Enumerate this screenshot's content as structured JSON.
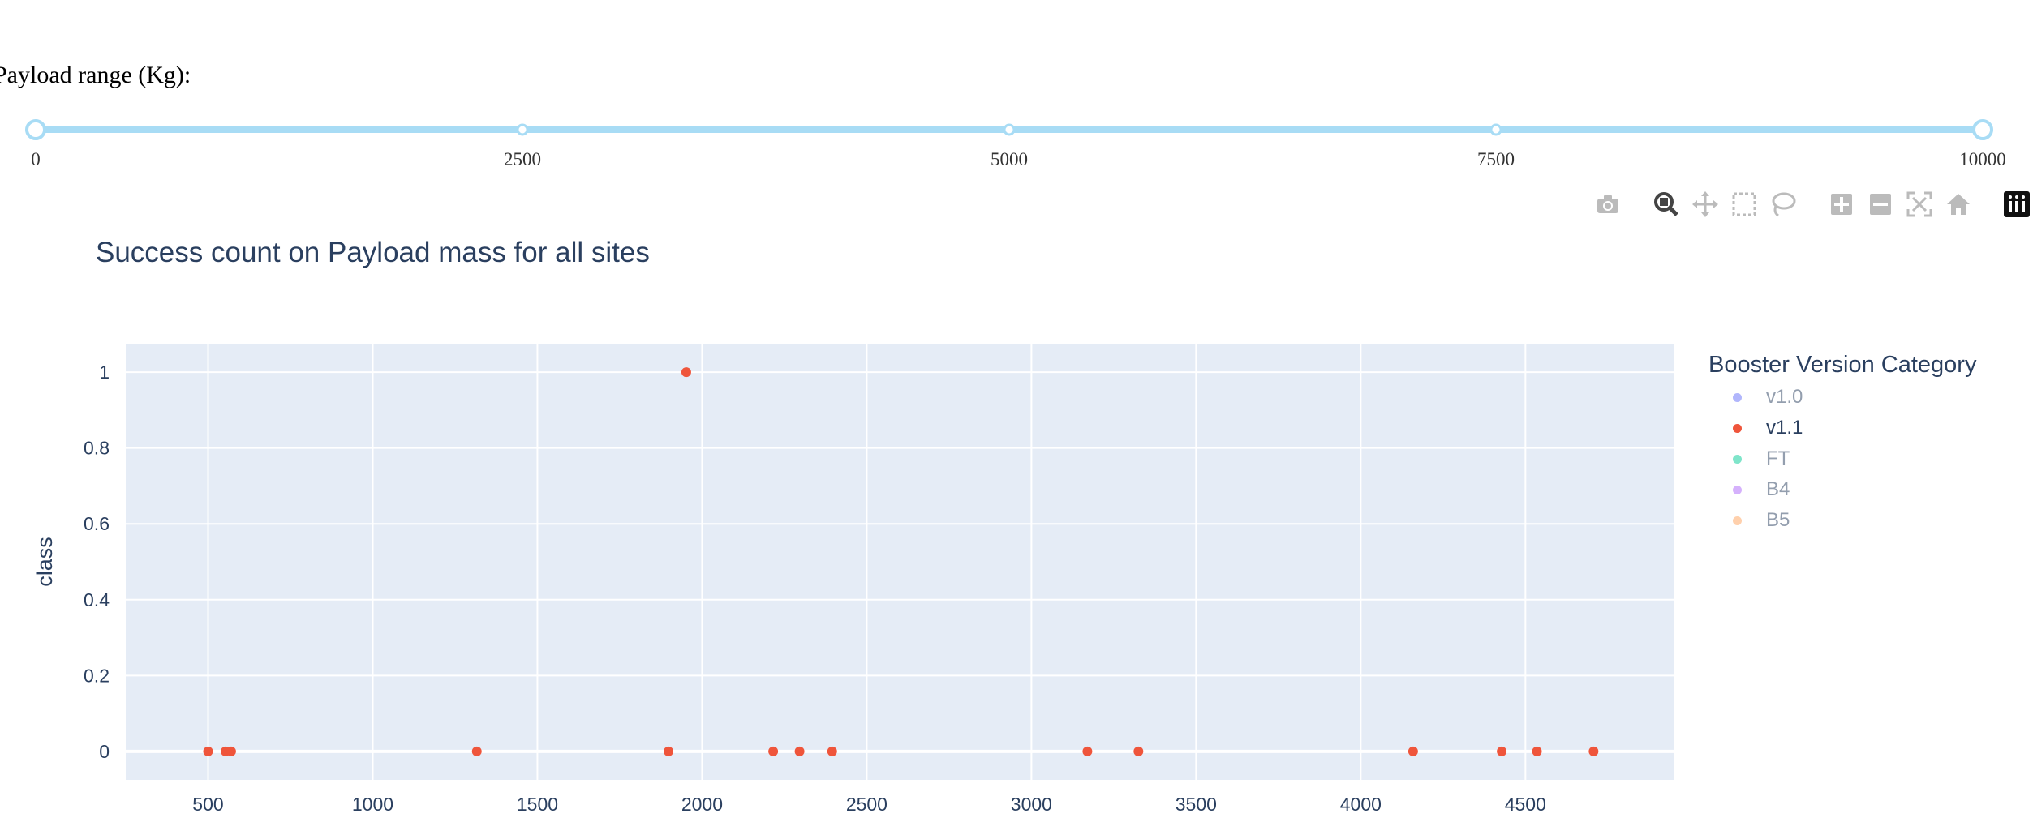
{
  "slider": {
    "label": "Payload range (Kg):",
    "min": 0,
    "max": 10000,
    "value_low": 0,
    "value_high": 10000,
    "marks": [
      "0",
      "2500",
      "5000",
      "7500",
      "10000"
    ],
    "color": "#a8dcf5"
  },
  "modebar": {
    "icons": [
      "camera-icon",
      "zoom-icon",
      "pan-icon",
      "box-select-icon",
      "lasso-icon",
      "zoom-in-icon",
      "zoom-out-icon",
      "autoscale-icon",
      "reset-axes-icon",
      "plotly-logo-icon"
    ]
  },
  "chart_data": {
    "type": "scatter",
    "title": "Success count on Payload mass for all sites",
    "xlabel": "",
    "ylabel": "class",
    "xlim": [
      250,
      4950
    ],
    "ylim": [
      -0.075,
      1.075
    ],
    "xticks": [
      "500",
      "1000",
      "1500",
      "2000",
      "2500",
      "3000",
      "3500",
      "4000",
      "4500"
    ],
    "yticks": [
      "0",
      "0.2",
      "0.4",
      "0.6",
      "0.8",
      "1"
    ],
    "grid": true,
    "plot_bg": "#e5ecf6",
    "legend_placement": "right",
    "legend_title": "Booster Version Category",
    "series": [
      {
        "name": "v1.0",
        "color": "#636efa",
        "visible": false,
        "x": [],
        "y": []
      },
      {
        "name": "v1.1",
        "color": "#ef553b",
        "visible": true,
        "x": [
          500,
          553,
          570,
          1316,
          1898,
          1952,
          2216,
          2296,
          2395,
          3170,
          3325,
          4159,
          4428,
          4535,
          4707
        ],
        "y": [
          0,
          0,
          0,
          0,
          0,
          1,
          0,
          0,
          0,
          0,
          0,
          0,
          0,
          0,
          0
        ]
      },
      {
        "name": "FT",
        "color": "#00cc96",
        "visible": false,
        "x": [],
        "y": []
      },
      {
        "name": "B4",
        "color": "#ab63fa",
        "visible": false,
        "x": [],
        "y": []
      },
      {
        "name": "B5",
        "color": "#ffa15a",
        "visible": false,
        "x": [],
        "y": []
      }
    ]
  }
}
